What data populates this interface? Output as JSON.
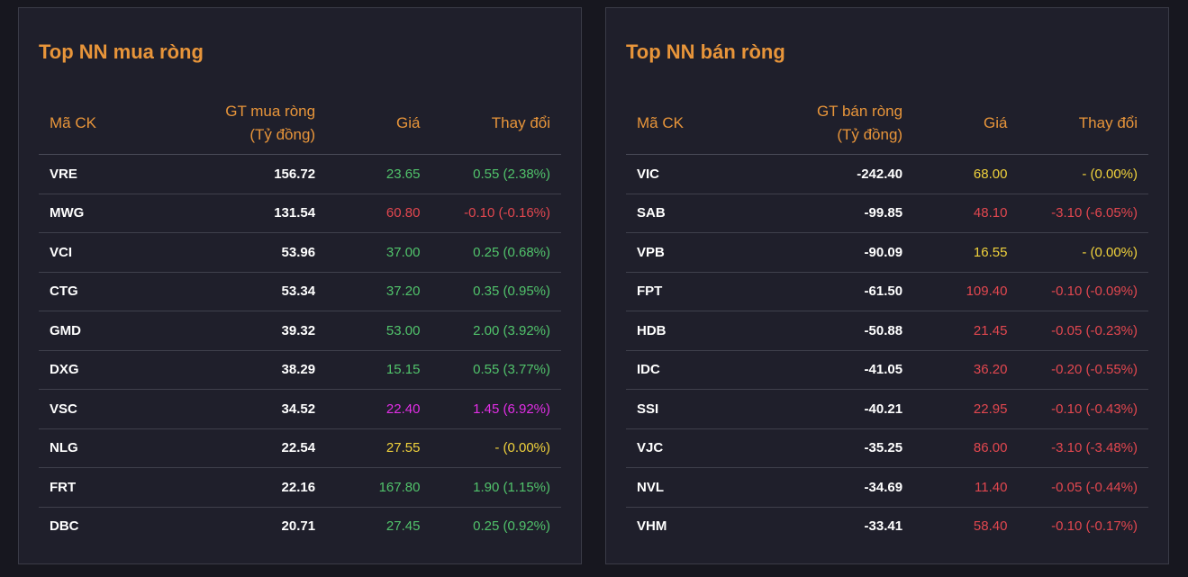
{
  "colors": {
    "up": "#51c36b",
    "down": "#e2474f",
    "ref": "#f0d23c",
    "ceil": "#e22ee6",
    "header": "#e8953a"
  },
  "buy": {
    "title": "Top NN mua ròng",
    "headers": {
      "code": "Mã CK",
      "value_line1": "GT mua ròng",
      "value_line2": "(Tỷ đồng)",
      "price": "Giá",
      "change": "Thay đổi"
    },
    "rows": [
      {
        "code": "VRE",
        "value": "156.72",
        "price": "23.65",
        "change": "0.55 (2.38%)",
        "status": "up"
      },
      {
        "code": "MWG",
        "value": "131.54",
        "price": "60.80",
        "change": "-0.10 (-0.16%)",
        "status": "down"
      },
      {
        "code": "VCI",
        "value": "53.96",
        "price": "37.00",
        "change": "0.25 (0.68%)",
        "status": "up"
      },
      {
        "code": "CTG",
        "value": "53.34",
        "price": "37.20",
        "change": "0.35 (0.95%)",
        "status": "up"
      },
      {
        "code": "GMD",
        "value": "39.32",
        "price": "53.00",
        "change": "2.00 (3.92%)",
        "status": "up"
      },
      {
        "code": "DXG",
        "value": "38.29",
        "price": "15.15",
        "change": "0.55 (3.77%)",
        "status": "up"
      },
      {
        "code": "VSC",
        "value": "34.52",
        "price": "22.40",
        "change": "1.45 (6.92%)",
        "status": "ceil"
      },
      {
        "code": "NLG",
        "value": "22.54",
        "price": "27.55",
        "change": "- (0.00%)",
        "status": "ref"
      },
      {
        "code": "FRT",
        "value": "22.16",
        "price": "167.80",
        "change": "1.90 (1.15%)",
        "status": "up"
      },
      {
        "code": "DBC",
        "value": "20.71",
        "price": "27.45",
        "change": "0.25 (0.92%)",
        "status": "up"
      }
    ]
  },
  "sell": {
    "title": "Top NN bán ròng",
    "headers": {
      "code": "Mã CK",
      "value_line1": "GT bán ròng",
      "value_line2": "(Tỷ đồng)",
      "price": "Giá",
      "change": "Thay đổi"
    },
    "rows": [
      {
        "code": "VIC",
        "value": "-242.40",
        "price": "68.00",
        "change": "- (0.00%)",
        "status": "ref"
      },
      {
        "code": "SAB",
        "value": "-99.85",
        "price": "48.10",
        "change": "-3.10 (-6.05%)",
        "status": "down"
      },
      {
        "code": "VPB",
        "value": "-90.09",
        "price": "16.55",
        "change": "- (0.00%)",
        "status": "ref"
      },
      {
        "code": "FPT",
        "value": "-61.50",
        "price": "109.40",
        "change": "-0.10 (-0.09%)",
        "status": "down"
      },
      {
        "code": "HDB",
        "value": "-50.88",
        "price": "21.45",
        "change": "-0.05 (-0.23%)",
        "status": "down"
      },
      {
        "code": "IDC",
        "value": "-41.05",
        "price": "36.20",
        "change": "-0.20 (-0.55%)",
        "status": "down"
      },
      {
        "code": "SSI",
        "value": "-40.21",
        "price": "22.95",
        "change": "-0.10 (-0.43%)",
        "status": "down"
      },
      {
        "code": "VJC",
        "value": "-35.25",
        "price": "86.00",
        "change": "-3.10 (-3.48%)",
        "status": "down"
      },
      {
        "code": "NVL",
        "value": "-34.69",
        "price": "11.40",
        "change": "-0.05 (-0.44%)",
        "status": "down"
      },
      {
        "code": "VHM",
        "value": "-33.41",
        "price": "58.40",
        "change": "-0.10 (-0.17%)",
        "status": "down"
      }
    ]
  }
}
